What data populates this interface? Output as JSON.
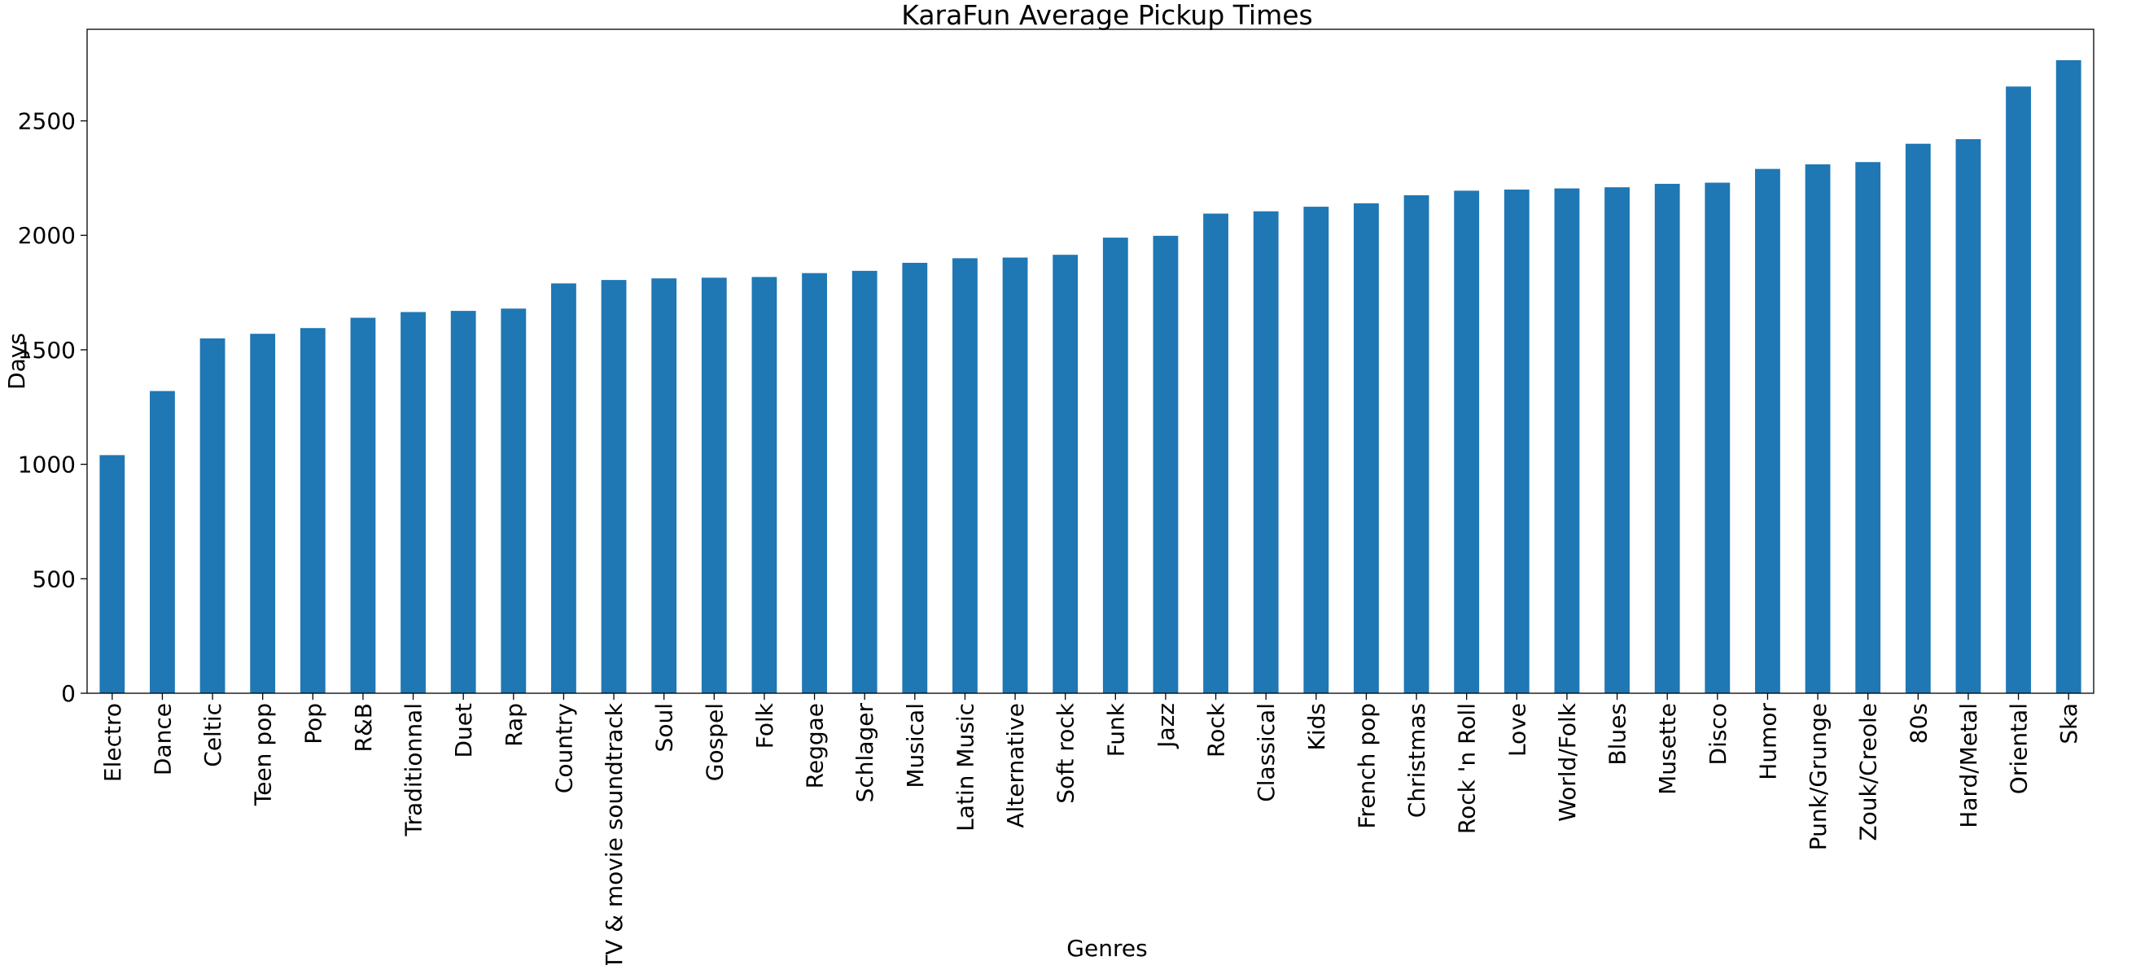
{
  "chart_data": {
    "type": "bar",
    "title": "KaraFun Average Pickup Times",
    "xlabel": "Genres",
    "ylabel": "Days",
    "ylim": [
      0,
      2900
    ],
    "yticks": [
      0,
      500,
      1000,
      1500,
      2000,
      2500
    ],
    "grid": false,
    "bar_color": "#1f77b4",
    "categories": [
      "Electro",
      "Dance",
      "Celtic",
      "Teen pop",
      "Pop",
      "R&B",
      "Traditionnal",
      "Duet",
      "Rap",
      "Country",
      "TV & movie soundtrack",
      "Soul",
      "Gospel",
      "Folk",
      "Reggae",
      "Schlager",
      "Musical",
      "Latin Music",
      "Alternative",
      "Soft rock",
      "Funk",
      "Jazz",
      "Rock",
      "Classical",
      "Kids",
      "French pop",
      "Christmas",
      "Rock 'n Roll",
      "Love",
      "World/Folk",
      "Blues",
      "Musette",
      "Disco",
      "Humor",
      "Punk/Grunge",
      "Zouk/Creole",
      "80s",
      "Hard/Metal",
      "Oriental",
      "Ska"
    ],
    "values": [
      1040,
      1320,
      1550,
      1570,
      1595,
      1640,
      1665,
      1670,
      1680,
      1790,
      1805,
      1812,
      1815,
      1818,
      1835,
      1845,
      1880,
      1900,
      1903,
      1915,
      1990,
      1998,
      2095,
      2105,
      2125,
      2140,
      2175,
      2195,
      2200,
      2205,
      2210,
      2225,
      2230,
      2290,
      2310,
      2320,
      2400,
      2420,
      2650,
      2765
    ]
  }
}
